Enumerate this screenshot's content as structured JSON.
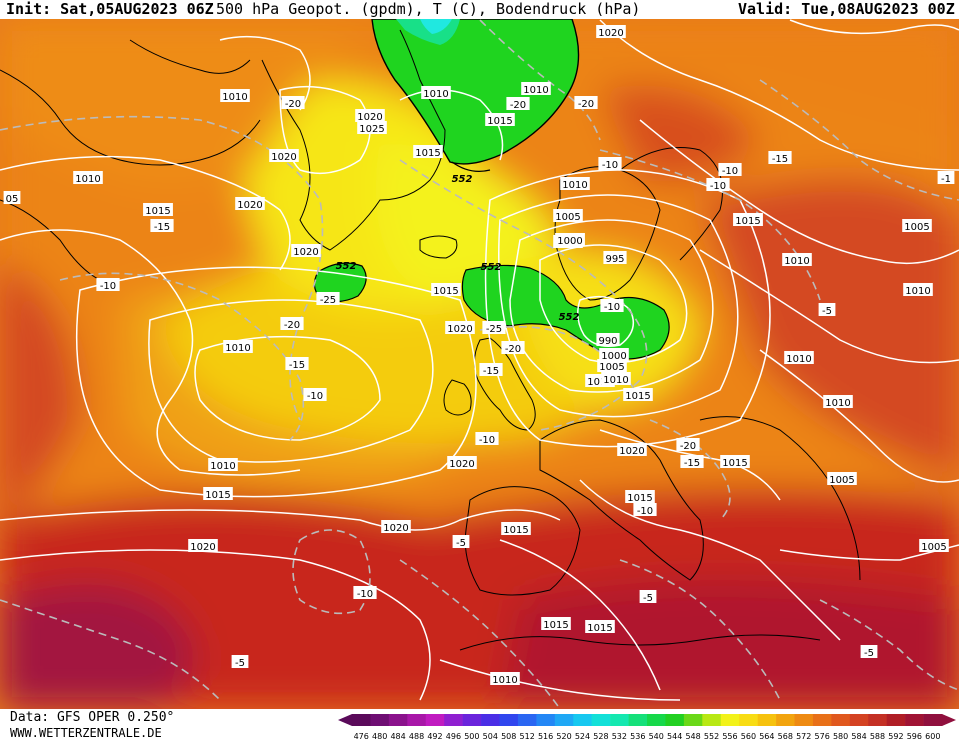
{
  "header": {
    "init": "Init: Sat,05AUG2023 06Z",
    "title": "500 hPa Geopot. (gpdm), T (C), Bodendruck (hPa)",
    "valid": "Valid: Tue,08AUG2023 00Z"
  },
  "footer": {
    "data_source": "Data: GFS OPER 0.250°",
    "website": "WWW.WETTERZENTRALE.DE"
  },
  "colorbar": {
    "ticks": [
      "476",
      "480",
      "484",
      "488",
      "492",
      "496",
      "500",
      "504",
      "508",
      "512",
      "516",
      "520",
      "524",
      "528",
      "532",
      "536",
      "540",
      "544",
      "548",
      "552",
      "556",
      "560",
      "564",
      "568",
      "572",
      "576",
      "580",
      "584",
      "588",
      "592",
      "596",
      "600"
    ],
    "colors": [
      "#5a0a5a",
      "#6e0e73",
      "#8a128c",
      "#a817a8",
      "#c01bc0",
      "#8f1fd0",
      "#6a24dc",
      "#4a2ee6",
      "#3046ee",
      "#2a66f2",
      "#2387f5",
      "#1fa8f5",
      "#17c8f0",
      "#12e0d8",
      "#14e8b0",
      "#15e07a",
      "#16d84a",
      "#22d022",
      "#6ad818",
      "#b8e814",
      "#f2f21a",
      "#f8dc14",
      "#f6c20e",
      "#f2a40e",
      "#ee8a12",
      "#e87018",
      "#e0581e",
      "#d44222",
      "#c43024",
      "#b01e26",
      "#a01434",
      "#90103e"
    ]
  },
  "map": {
    "pressure_labels": [
      "1010",
      "1015",
      "1020",
      "1025",
      "1000",
      "995",
      "990",
      "1005"
    ],
    "isobar_labels": [
      {
        "t": "1020"
      },
      {
        "t": "1010"
      },
      {
        "t": "1015"
      },
      {
        "t": "1020"
      },
      {
        "t": "1020"
      },
      {
        "t": "1025"
      },
      {
        "t": "1020"
      },
      {
        "t": "1010"
      },
      {
        "t": "1015"
      },
      {
        "t": "1020"
      },
      {
        "t": "1010"
      },
      {
        "t": "1015"
      },
      {
        "t": "1010"
      },
      {
        "t": "1015"
      },
      {
        "t": "1020"
      },
      {
        "t": "1010"
      },
      {
        "t": "1005"
      },
      {
        "t": "1010"
      },
      {
        "t": "1015"
      },
      {
        "t": "1020"
      },
      {
        "t": "1015"
      },
      {
        "t": "1015"
      },
      {
        "t": "1020"
      },
      {
        "t": "1015"
      },
      {
        "t": "1010"
      },
      {
        "t": "1005"
      },
      {
        "t": "1000"
      },
      {
        "t": "995"
      },
      {
        "t": "990"
      },
      {
        "t": "1000"
      },
      {
        "t": "1005"
      },
      {
        "t": "1010"
      },
      {
        "t": "1015"
      },
      {
        "t": "1020"
      },
      {
        "t": "1015"
      },
      {
        "t": "1015"
      },
      {
        "t": "1010"
      },
      {
        "t": "1015"
      },
      {
        "t": "1010"
      },
      {
        "t": "1010"
      },
      {
        "t": "1010"
      },
      {
        "t": "1005"
      },
      {
        "t": "1005"
      },
      {
        "t": "1005"
      },
      {
        "t": "1015"
      },
      {
        "t": "1015"
      },
      {
        "t": "1010"
      },
      {
        "t": "05"
      },
      {
        "t": "1010"
      },
      {
        "t": "1015"
      },
      {
        "t": "1020"
      }
    ],
    "temp_labels": [
      {
        "t": "-20"
      },
      {
        "t": "-15"
      },
      {
        "t": "-10"
      },
      {
        "t": "-20"
      },
      {
        "t": "-15"
      },
      {
        "t": "-10"
      },
      {
        "t": "-20"
      },
      {
        "t": "-20"
      },
      {
        "t": "-25"
      },
      {
        "t": "-25"
      },
      {
        "t": "-20"
      },
      {
        "t": "-15"
      },
      {
        "t": "-10"
      },
      {
        "t": "-10"
      },
      {
        "t": "-20"
      },
      {
        "t": "-15"
      },
      {
        "t": "-10"
      },
      {
        "t": "-10"
      },
      {
        "t": "-15"
      },
      {
        "t": "-10"
      },
      {
        "t": "-5"
      },
      {
        "t": "-10"
      },
      {
        "t": "-5"
      },
      {
        "t": "-5"
      },
      {
        "t": "-5"
      },
      {
        "t": "-10"
      },
      {
        "t": "-5"
      },
      {
        "t": "-1"
      }
    ],
    "geopot_labels": [
      "552",
      "552",
      "552",
      "552"
    ]
  }
}
